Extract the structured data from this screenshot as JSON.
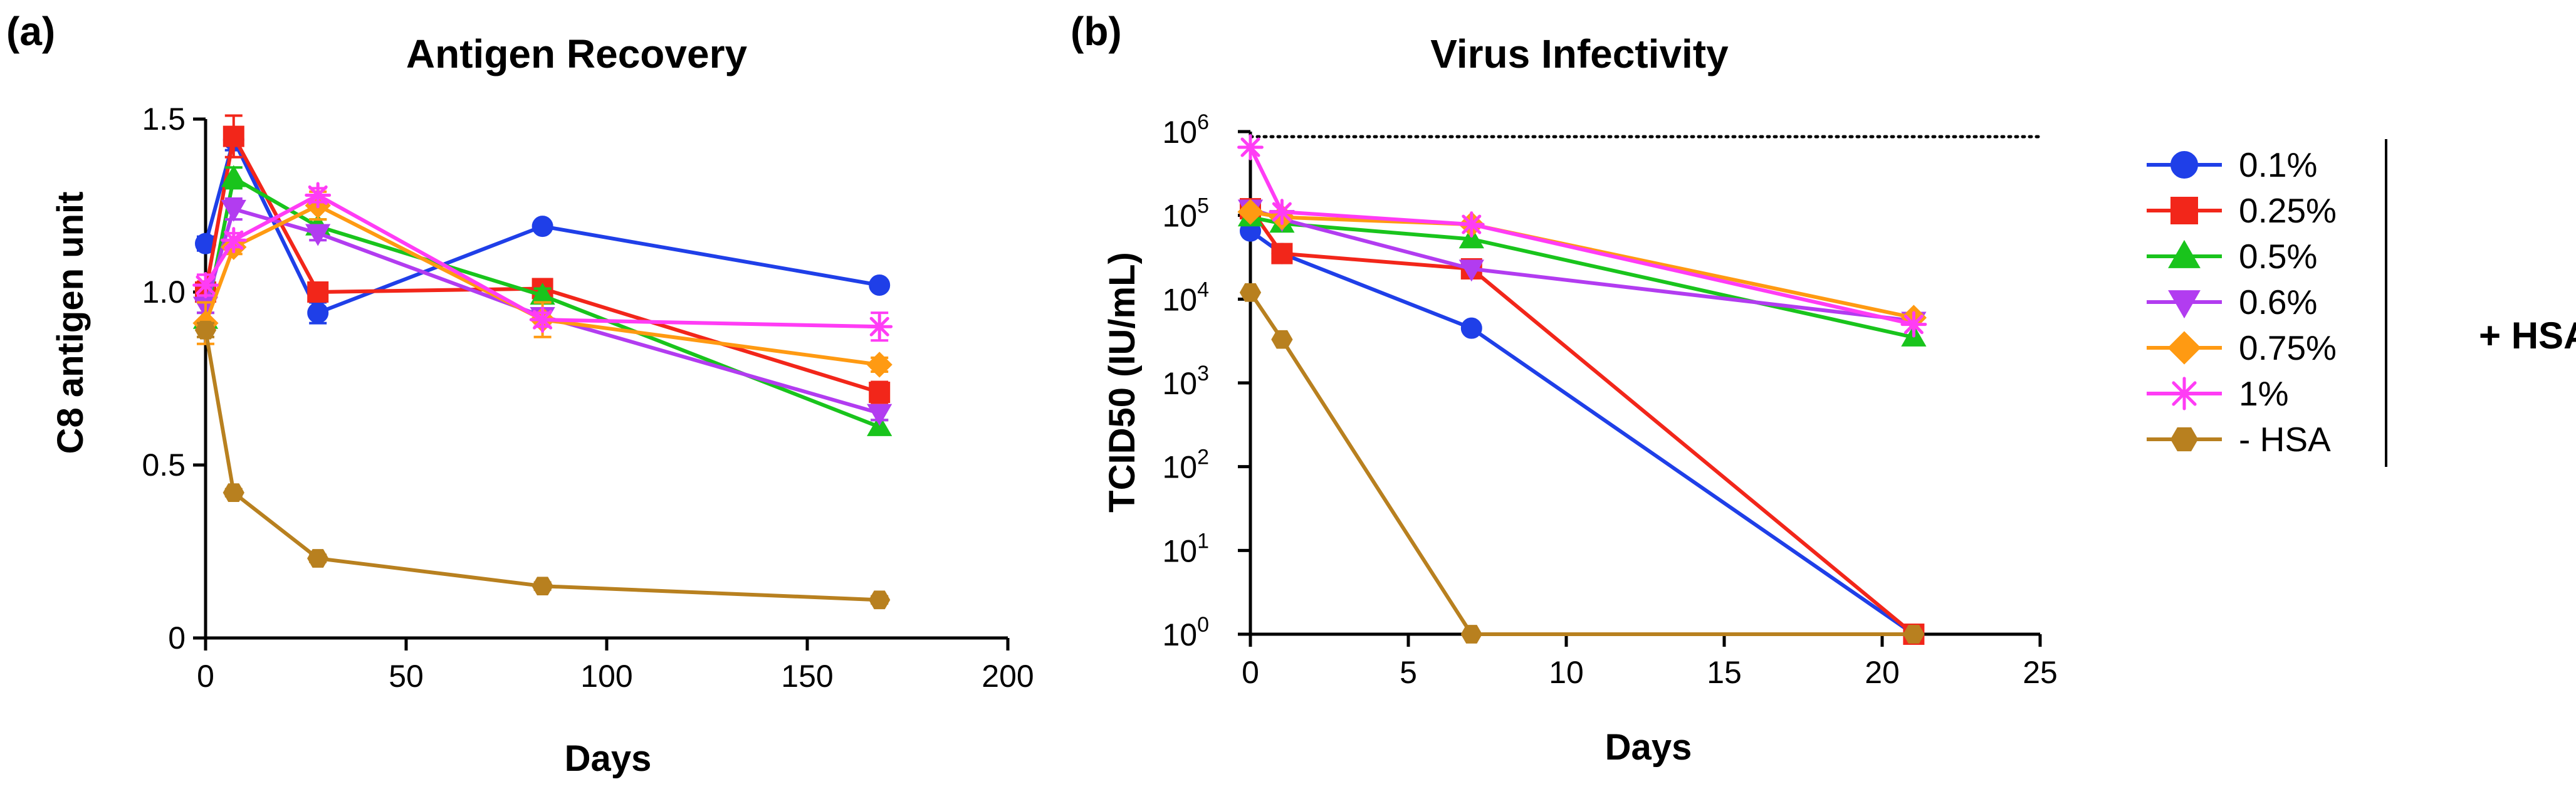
{
  "chart_data": [
    {
      "type": "line",
      "panel_label": "(a)",
      "title": "Antigen Recovery",
      "xlabel": "Days",
      "ylabel": "C8 antigen unit",
      "xlim": [
        0,
        200
      ],
      "ylim": [
        0,
        1.5
      ],
      "xticks": [
        0,
        50,
        100,
        150,
        200
      ],
      "xtick_labels": [
        "0",
        "50",
        "100",
        "150",
        "200"
      ],
      "yticks": [
        0,
        0.5,
        1.0,
        1.5
      ],
      "ytick_labels": [
        "0",
        "0.5",
        "1.0",
        "1.5"
      ],
      "series": [
        {
          "name": "0.1%",
          "x": [
            0,
            7,
            28,
            84,
            168
          ],
          "y": [
            1.14,
            1.44,
            0.94,
            1.19,
            1.02
          ],
          "err": [
            0.02,
            0.03,
            0.03,
            0.01,
            0.01
          ]
        },
        {
          "name": "0.25%",
          "x": [
            0,
            7,
            28,
            84,
            168
          ],
          "y": [
            1.0,
            1.45,
            1.0,
            1.01,
            0.71
          ],
          "err": [
            0.03,
            0.06,
            0.02,
            0.02,
            0.03
          ]
        },
        {
          "name": "0.5%",
          "x": [
            0,
            7,
            28,
            84,
            168
          ],
          "y": [
            0.92,
            1.33,
            1.19,
            0.99,
            0.61
          ],
          "err": [
            0.02,
            0.03,
            0.02,
            0.02,
            0.02
          ]
        },
        {
          "name": "0.6%",
          "x": [
            0,
            7,
            28,
            84,
            168
          ],
          "y": [
            0.96,
            1.24,
            1.17,
            0.93,
            0.65
          ],
          "err": [
            0.02,
            0.03,
            0.02,
            0.02,
            0.02
          ]
        },
        {
          "name": "0.75%",
          "x": [
            0,
            7,
            28,
            84,
            168
          ],
          "y": [
            0.91,
            1.13,
            1.25,
            0.92,
            0.79
          ],
          "err": [
            0.06,
            0.02,
            0.04,
            0.05,
            0.02
          ]
        },
        {
          "name": "1%",
          "x": [
            0,
            7,
            28,
            84,
            168
          ],
          "y": [
            1.02,
            1.15,
            1.28,
            0.92,
            0.9
          ],
          "err": [
            0.03,
            0.02,
            0.02,
            0.02,
            0.04
          ]
        },
        {
          "name": "- HSA",
          "x": [
            0,
            7,
            28,
            84,
            168
          ],
          "y": [
            0.89,
            0.42,
            0.23,
            0.15,
            0.11
          ],
          "err": [
            0.02,
            0.01,
            0.01,
            0.01,
            0.01
          ]
        }
      ]
    },
    {
      "type": "line",
      "panel_label": "(b)",
      "title": "Virus Infectivity",
      "xlabel": "Days",
      "ylabel": "TCID50 (IU/mL)",
      "yscale": "log",
      "xlim": [
        0,
        25
      ],
      "ylim": [
        1,
        1000000
      ],
      "xticks": [
        0,
        5,
        10,
        15,
        20,
        25
      ],
      "xtick_labels": [
        "0",
        "5",
        "10",
        "15",
        "20",
        "25"
      ],
      "yticks": [
        1,
        10,
        100,
        1000,
        10000,
        100000,
        1000000
      ],
      "ytick_base": "10",
      "ytick_exponents": [
        "0",
        "1",
        "2",
        "3",
        "4",
        "5",
        "6"
      ],
      "reference_line": {
        "y": 870000,
        "style": "dotted"
      },
      "series": [
        {
          "name": "0.1%",
          "x": [
            0,
            1,
            7,
            21
          ],
          "y": [
            65000,
            35000,
            4500,
            1
          ]
        },
        {
          "name": "0.25%",
          "x": [
            0,
            1,
            7,
            21
          ],
          "y": [
            120000,
            35000,
            23000,
            1
          ]
        },
        {
          "name": "0.5%",
          "x": [
            0,
            1,
            7,
            21
          ],
          "y": [
            95000,
            80000,
            52000,
            3500
          ]
        },
        {
          "name": "0.6%",
          "x": [
            0,
            1,
            7,
            21
          ],
          "y": [
            120000,
            90000,
            23000,
            5500
          ]
        },
        {
          "name": "0.75%",
          "x": [
            0,
            1,
            7,
            21
          ],
          "y": [
            110000,
            95000,
            78000,
            6000
          ]
        },
        {
          "name": "1%",
          "x": [
            0,
            1,
            7,
            21
          ],
          "y": [
            650000,
            110000,
            78000,
            5000
          ]
        },
        {
          "name": "- HSA",
          "x": [
            0,
            1,
            7,
            21
          ],
          "y": [
            12000,
            3300,
            1,
            1
          ]
        }
      ]
    }
  ],
  "legend": {
    "items": [
      {
        "label": "0.1%",
        "color": "#1f3fe8",
        "marker": "circle"
      },
      {
        "label": "0.25%",
        "color": "#f2261a",
        "marker": "square"
      },
      {
        "label": "0.5%",
        "color": "#19c41c",
        "marker": "triangle-up"
      },
      {
        "label": "0.6%",
        "color": "#b23cf0",
        "marker": "triangle-down"
      },
      {
        "label": "0.75%",
        "color": "#ff9a12",
        "marker": "diamond"
      },
      {
        "label": "1%",
        "color": "#ff3cf5",
        "marker": "asterisk"
      },
      {
        "label": "- HSA",
        "color": "#b8801f",
        "marker": "hexagon"
      }
    ],
    "group_label": "+ HSA"
  }
}
